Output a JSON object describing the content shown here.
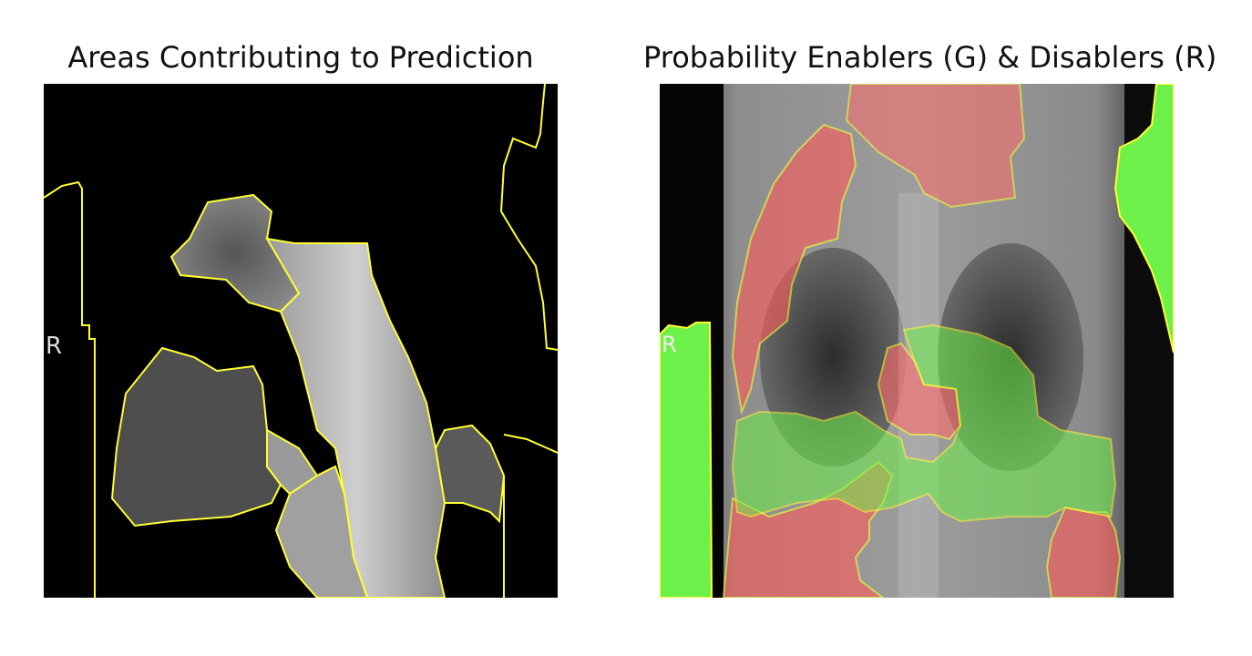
{
  "figure": {
    "left_panel": {
      "title": "Areas Contributing to Prediction"
    },
    "right_panel": {
      "title": "Probability Enablers (G) & Disablers (R)"
    },
    "image_marker": "R"
  },
  "colors": {
    "background": "#000000",
    "boundary": "#ffff33",
    "enabler_green": "#6ef04a",
    "disabler_red": "#ff5a5a"
  }
}
